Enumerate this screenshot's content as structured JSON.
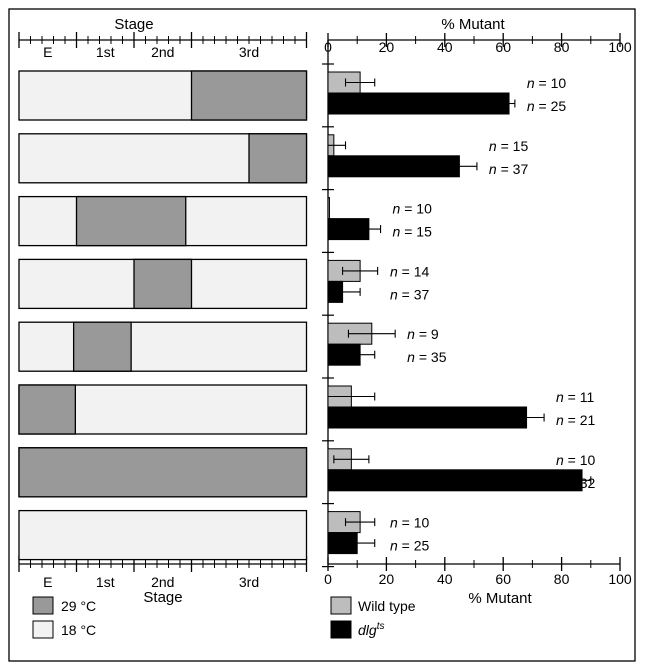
{
  "stage_panel": {
    "title_top": "Stage",
    "title_bottom": "Stage",
    "stage_labels": [
      "E",
      "1st",
      "2nd",
      "3rd"
    ]
  },
  "percent_panel": {
    "title_top": "% Mutant",
    "title_bottom": "% Mutant",
    "ticks": [
      "0",
      "20",
      "40",
      "60",
      "80",
      "100"
    ]
  },
  "legend": {
    "temp_high": "29 °C",
    "temp_low": "18 °C",
    "wild_type": "Wild type",
    "mutant_base": "dlg",
    "mutant_sup": "ts"
  },
  "colors": {
    "temp_29": "#999999",
    "temp_18": "#f2f2f2",
    "wild_type": "#bdbdbd",
    "mutant": "#000000"
  },
  "chart_data": {
    "type": "bar",
    "orientation": "horizontal",
    "xlabel": "% Mutant",
    "xlim": [
      0,
      100
    ],
    "stage_axis": {
      "label": "Stage",
      "stages": [
        "E",
        "1st",
        "2nd",
        "3rd"
      ],
      "stage_boundaries": [
        0,
        1,
        2,
        3,
        5
      ]
    },
    "conditions": [
      {
        "shift_29C": [
          3,
          5
        ],
        "wild_type": {
          "value": 11,
          "error": 5,
          "n": "n = 10"
        },
        "mutant": {
          "value": 62,
          "error": 2,
          "n": "n = 25"
        }
      },
      {
        "shift_29C": [
          4,
          5
        ],
        "wild_type": {
          "value": 2,
          "error": 4,
          "n": "n = 15"
        },
        "mutant": {
          "value": 45,
          "error": 6,
          "n": "n = 37"
        }
      },
      {
        "shift_29C": [
          1,
          2.9
        ],
        "wild_type": {
          "value": 0.5,
          "error": 0,
          "n": "n = 10"
        },
        "mutant": {
          "value": 14,
          "error": 4,
          "n": "n = 15"
        }
      },
      {
        "shift_29C": [
          2,
          3
        ],
        "wild_type": {
          "value": 11,
          "error": 6,
          "n": "n = 14"
        },
        "mutant": {
          "value": 5,
          "error": 6,
          "n": "n = 37"
        }
      },
      {
        "shift_29C": [
          0.95,
          1.95
        ],
        "wild_type": {
          "value": 15,
          "error": 8,
          "n": "n = 9"
        },
        "mutant": {
          "value": 11,
          "error": 5,
          "n": "n = 35"
        }
      },
      {
        "shift_29C": [
          0,
          0.98
        ],
        "wild_type": {
          "value": 8,
          "error": 8,
          "n": "n = 11"
        },
        "mutant": {
          "value": 68,
          "error": 6,
          "n": "n = 21"
        }
      },
      {
        "shift_29C": [
          0,
          5
        ],
        "wild_type": {
          "value": 8,
          "error": 6,
          "n": "n = 10"
        },
        "mutant": {
          "value": 87,
          "error": 3,
          "n": "n = 32"
        }
      },
      {
        "shift_29C": null,
        "wild_type": {
          "value": 11,
          "error": 5,
          "n": "n = 10"
        },
        "mutant": {
          "value": 10,
          "error": 6,
          "n": "n = 25"
        }
      }
    ],
    "legend": [
      "Wild type",
      "dlg ts"
    ]
  }
}
